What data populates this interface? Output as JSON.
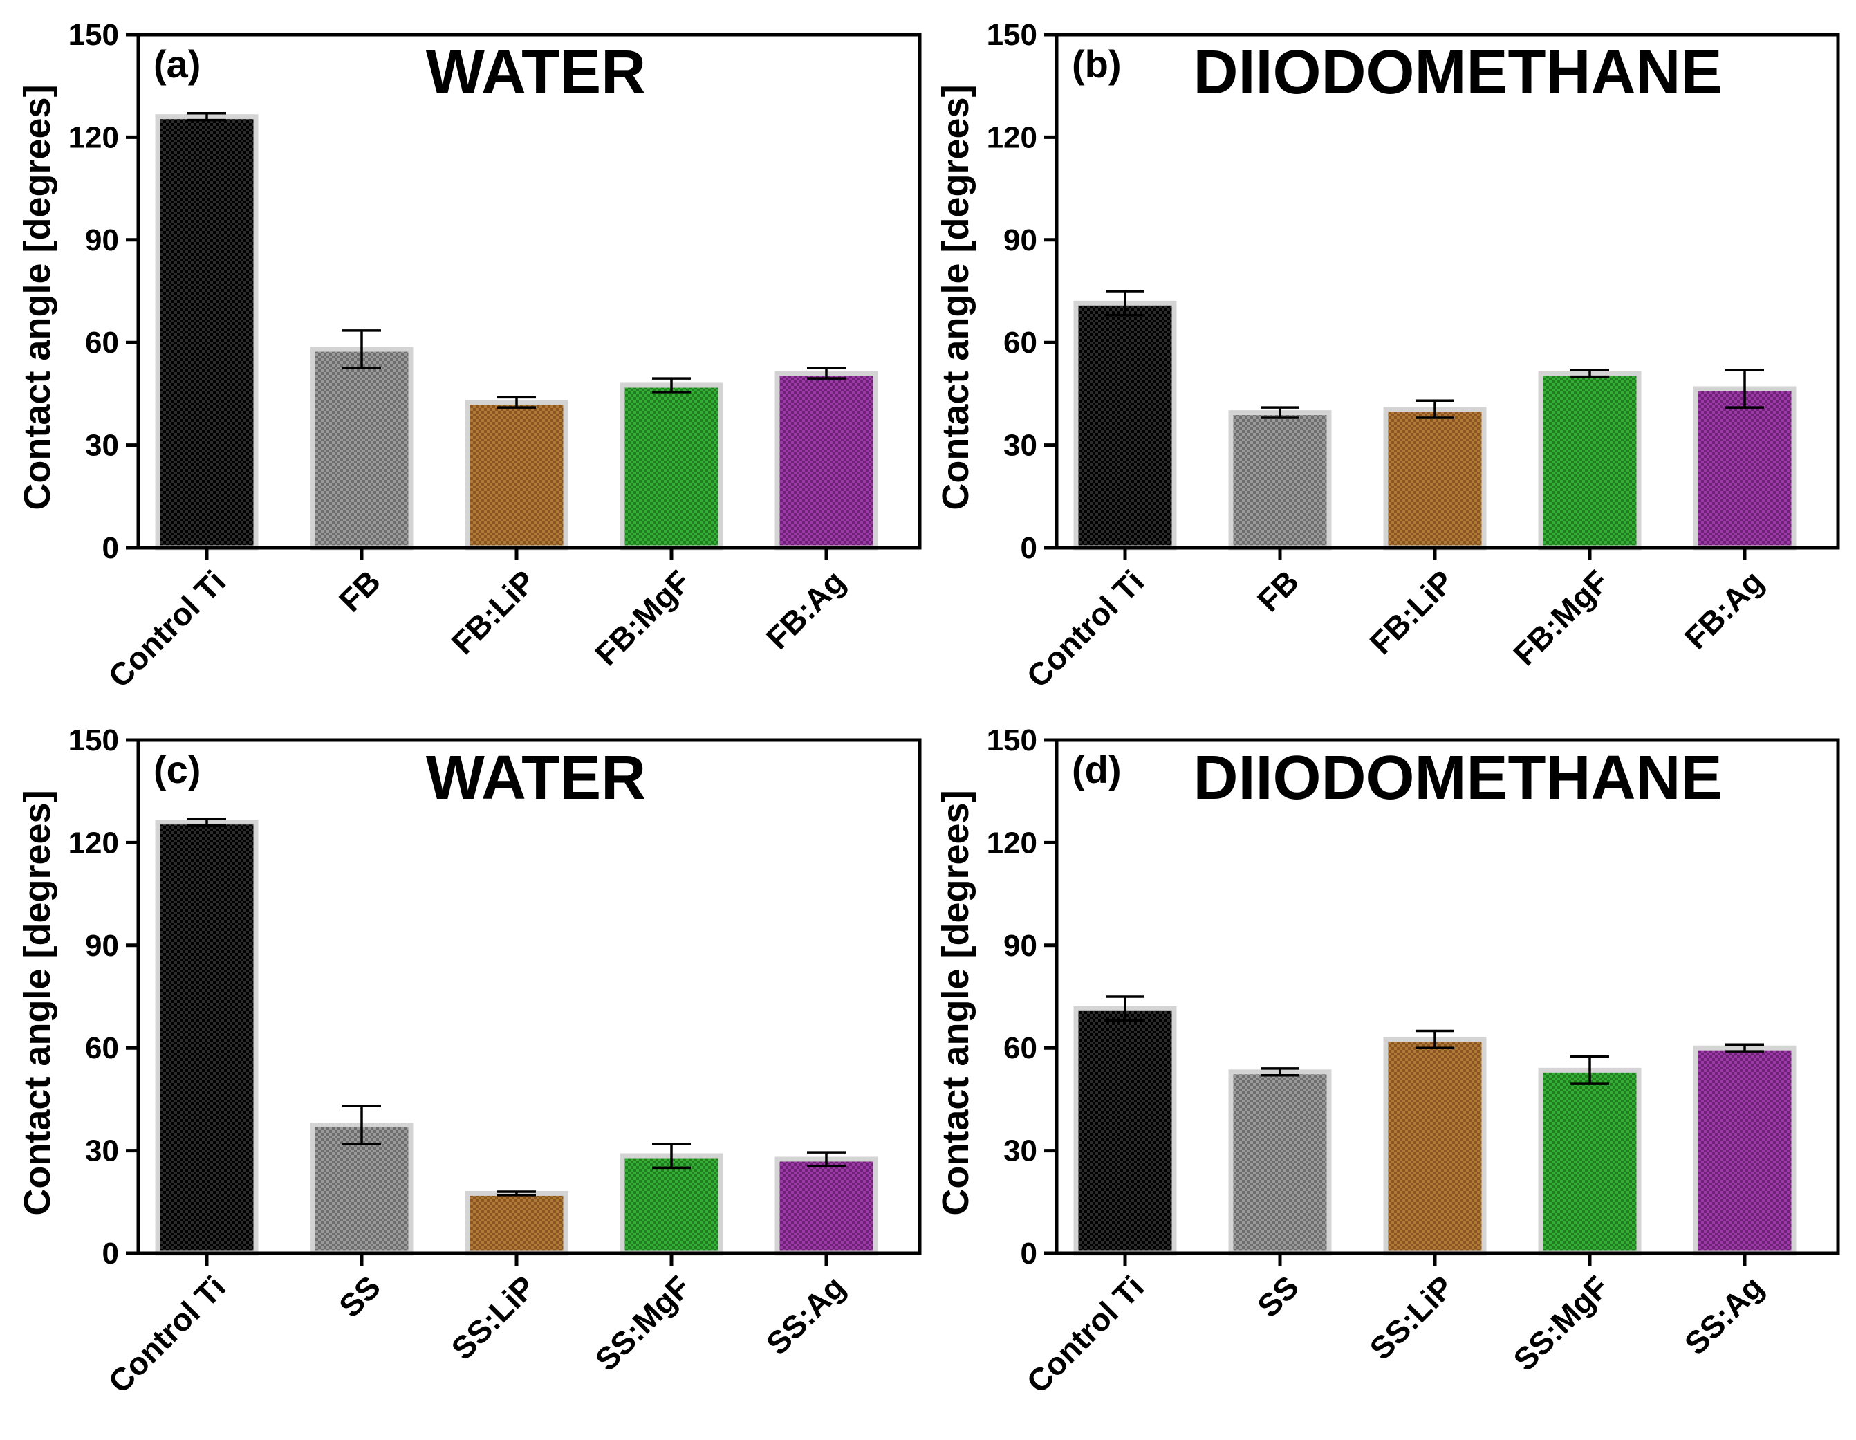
{
  "chart_data": [
    {
      "type": "bar",
      "panel_tag": "(a)",
      "title": "WATER",
      "ylabel": "Contact angle [degrees]",
      "xlabel": "",
      "ylim": [
        0,
        150
      ],
      "yticks": [
        "0",
        "30",
        "60",
        "90",
        "120",
        "150"
      ],
      "categories": [
        "Control Ti",
        "FB",
        "FB:LiP",
        "FB:MgF",
        "FB:Ag"
      ],
      "values": [
        126,
        58,
        42.5,
        47.5,
        51
      ],
      "errors": [
        1,
        5.5,
        1.5,
        2,
        1.5
      ]
    },
    {
      "type": "bar",
      "panel_tag": "(b)",
      "title": "DIIODOMETHANE",
      "ylabel": "Contact angle [degrees]",
      "xlabel": "",
      "ylim": [
        0,
        150
      ],
      "yticks": [
        "0",
        "30",
        "60",
        "90",
        "120",
        "150"
      ],
      "categories": [
        "Control Ti",
        "FB",
        "FB:LiP",
        "FB:MgF",
        "FB:Ag"
      ],
      "values": [
        71.5,
        39.5,
        40.5,
        51,
        46.5
      ],
      "errors": [
        3.5,
        1.5,
        2.5,
        1,
        5.5
      ]
    },
    {
      "type": "bar",
      "panel_tag": "(c)",
      "title": "WATER",
      "ylabel": "Contact angle [degrees]",
      "xlabel": "",
      "ylim": [
        0,
        150
      ],
      "yticks": [
        "0",
        "30",
        "60",
        "90",
        "120",
        "150"
      ],
      "categories": [
        "Control Ti",
        "SS",
        "SS:LiP",
        "SS:MgF",
        "SS:Ag"
      ],
      "values": [
        126,
        37.5,
        17.5,
        28.5,
        27.5
      ],
      "errors": [
        1,
        5.5,
        0.5,
        3.5,
        2
      ]
    },
    {
      "type": "bar",
      "panel_tag": "(d)",
      "title": "DIIODOMETHANE",
      "ylabel": "Contact angle [degrees]",
      "xlabel": "",
      "ylim": [
        0,
        150
      ],
      "yticks": [
        "0",
        "30",
        "60",
        "90",
        "120",
        "150"
      ],
      "categories": [
        "Control Ti",
        "SS",
        "SS:LiP",
        "SS:MgF",
        "SS:Ag"
      ],
      "values": [
        71.5,
        53,
        62.5,
        53.5,
        60
      ],
      "errors": [
        3.5,
        1,
        2.5,
        4,
        1
      ]
    }
  ],
  "colors": {
    "control": "#2b2b2b",
    "base": "#8c8c8c",
    "lip": "#a0692c",
    "mgf": "#2a9a2a",
    "ag": "#8a2f94",
    "bar_edge": "#d4d4d4"
  }
}
